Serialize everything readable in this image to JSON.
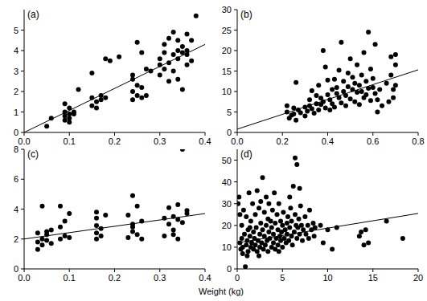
{
  "chart_data": [
    {
      "type": "scatter",
      "title": "(a)",
      "xlim": [
        0,
        0.4
      ],
      "xticks": [
        {
          "value": 0,
          "label": "0.0"
        },
        0.1,
        0.2,
        0.3,
        0.4
      ],
      "ylim": [
        0,
        6
      ],
      "yticks": [
        0,
        1,
        2,
        3,
        4,
        5
      ],
      "series": [
        {
          "type": "scatter",
          "marker": "circle",
          "color": "#000000",
          "x": [
            0.05,
            0.06,
            0.09,
            0.09,
            0.09,
            0.1,
            0.1,
            0.1,
            0.09,
            0.11,
            0.12,
            0.11,
            0.1,
            0.15,
            0.15,
            0.15,
            0.16,
            0.16,
            0.17,
            0.17,
            0.18,
            0.18,
            0.19,
            0.21,
            0.24,
            0.24,
            0.24,
            0.25,
            0.25,
            0.25,
            0.26,
            0.26,
            0.26,
            0.27,
            0.27,
            0.28,
            0.24,
            0.3,
            0.3,
            0.3,
            0.31,
            0.31,
            0.31,
            0.32,
            0.32,
            0.32,
            0.33,
            0.33,
            0.33,
            0.34,
            0.34,
            0.34,
            0.35,
            0.35,
            0.35,
            0.36,
            0.36,
            0.36,
            0.37,
            0.37,
            0.38,
            0.36,
            0.34
          ],
          "values": [
            0.3,
            0.7,
            0.8,
            1.0,
            0.6,
            0.9,
            1.2,
            0.7,
            1.4,
            0.9,
            2.1,
            1.0,
            0.5,
            1.3,
            1.7,
            2.9,
            1.5,
            1.2,
            1.8,
            1.6,
            1.7,
            3.6,
            3.5,
            3.7,
            2.0,
            2.6,
            2.8,
            1.8,
            4.4,
            2.3,
            2.2,
            3.9,
            1.7,
            1.8,
            3.1,
            3.0,
            1.6,
            3.3,
            3.6,
            2.8,
            3.1,
            3.9,
            4.3,
            2.5,
            3.4,
            4.6,
            4.9,
            3.8,
            3.0,
            3.6,
            2.6,
            4.5,
            3.9,
            4.2,
            2.1,
            3.3,
            4.8,
            4.0,
            4.5,
            3.5,
            5.7,
            3.8,
            4.0
          ]
        },
        {
          "type": "line",
          "line_style": "solid",
          "color": "#000000",
          "x": [
            0,
            0.4
          ],
          "values": [
            0,
            4.3
          ]
        }
      ]
    },
    {
      "type": "scatter",
      "title": "(b)",
      "xlim": [
        0,
        0.8
      ],
      "xticks": [
        {
          "value": 0,
          "label": "0.0"
        },
        0.2,
        0.4,
        0.6,
        0.8
      ],
      "ylim": [
        0,
        30
      ],
      "yticks": [
        0,
        5,
        10,
        15,
        20,
        25,
        30
      ],
      "series": [
        {
          "type": "scatter",
          "marker": "circle",
          "color": "#000000",
          "x": [
            0.22,
            0.22,
            0.23,
            0.24,
            0.25,
            0.25,
            0.26,
            0.26,
            0.27,
            0.28,
            0.3,
            0.3,
            0.31,
            0.32,
            0.32,
            0.33,
            0.33,
            0.34,
            0.35,
            0.35,
            0.36,
            0.36,
            0.37,
            0.37,
            0.38,
            0.38,
            0.39,
            0.39,
            0.4,
            0.4,
            0.41,
            0.41,
            0.42,
            0.42,
            0.43,
            0.43,
            0.44,
            0.44,
            0.45,
            0.45,
            0.46,
            0.46,
            0.47,
            0.47,
            0.48,
            0.48,
            0.49,
            0.49,
            0.5,
            0.5,
            0.51,
            0.51,
            0.52,
            0.52,
            0.53,
            0.53,
            0.54,
            0.54,
            0.55,
            0.55,
            0.56,
            0.56,
            0.57,
            0.57,
            0.58,
            0.58,
            0.59,
            0.59,
            0.6,
            0.6,
            0.61,
            0.61,
            0.62,
            0.62,
            0.63,
            0.64,
            0.66,
            0.67,
            0.68,
            0.68,
            0.69,
            0.69,
            0.7,
            0.7,
            0.7
          ],
          "values": [
            6.5,
            5.0,
            3.5,
            4.2,
            6.0,
            4.5,
            12.2,
            3.0,
            5.5,
            4.8,
            6.2,
            4.0,
            5.2,
            8.0,
            6.5,
            10.2,
            5.8,
            4.7,
            7.0,
            9.0,
            5.5,
            11.5,
            6.8,
            8.4,
            20.0,
            7.5,
            16.0,
            6.0,
            9.2,
            12.8,
            5.5,
            8.0,
            10.5,
            7.0,
            13.0,
            6.2,
            9.5,
            11.0,
            8.5,
            15.2,
            7.2,
            22.0,
            10.0,
            12.5,
            6.5,
            9.0,
            14.5,
            11.2,
            8.2,
            18.0,
            10.5,
            13.5,
            7.5,
            12.0,
            9.8,
            16.5,
            11.5,
            6.8,
            10.0,
            14.0,
            8.5,
            19.5,
            12.5,
            9.2,
            24.5,
            10.8,
            15.5,
            7.8,
            11.0,
            13.2,
            21.5,
            9.5,
            8.0,
            5.0,
            10.5,
            6.5,
            12.0,
            7.5,
            18.5,
            14.0,
            10.5,
            8.5,
            19.0,
            16.5,
            11.5
          ]
        },
        {
          "type": "line",
          "line_style": "solid",
          "color": "#000000",
          "x": [
            0,
            0.8
          ],
          "values": [
            0.8,
            15.3
          ]
        }
      ]
    },
    {
      "type": "scatter",
      "title": "(c)",
      "xlim": [
        0,
        0.4
      ],
      "xticks": [
        {
          "value": 0,
          "label": "0.0"
        },
        0.1,
        0.2,
        0.3,
        0.4
      ],
      "ylim": [
        0,
        8
      ],
      "yticks": [
        0,
        2,
        4,
        6,
        8
      ],
      "series": [
        {
          "type": "scatter",
          "marker": "circle",
          "color": "#000000",
          "x": [
            0.03,
            0.03,
            0.03,
            0.04,
            0.04,
            0.04,
            0.05,
            0.05,
            0.05,
            0.06,
            0.06,
            0.08,
            0.08,
            0.08,
            0.09,
            0.09,
            0.1,
            0.1,
            0.16,
            0.16,
            0.16,
            0.16,
            0.17,
            0.17,
            0.18,
            0.16,
            0.23,
            0.23,
            0.24,
            0.24,
            0.24,
            0.25,
            0.25,
            0.26,
            0.26,
            0.24,
            0.31,
            0.31,
            0.32,
            0.32,
            0.33,
            0.33,
            0.34,
            0.34,
            0.34,
            0.35,
            0.35,
            0.36,
            0.36,
            0.33
          ],
          "values": [
            1.3,
            2.4,
            1.8,
            2.0,
            4.2,
            1.6,
            2.5,
            1.9,
            2.3,
            1.7,
            2.6,
            2.0,
            4.2,
            2.8,
            2.2,
            3.2,
            2.1,
            3.7,
            2.0,
            2.4,
            3.4,
            3.8,
            2.2,
            2.7,
            3.6,
            2.9,
            2.1,
            3.6,
            2.5,
            4.9,
            2.8,
            2.3,
            4.2,
            3.2,
            2.0,
            3.0,
            2.2,
            3.4,
            3.0,
            4.1,
            2.6,
            3.5,
            2.0,
            4.3,
            3.3,
            8.0,
            3.1,
            3.7,
            3.9,
            2.3
          ]
        },
        {
          "type": "line",
          "line_style": "solid",
          "color": "#000000",
          "x": [
            0,
            0.4
          ],
          "values": [
            2.0,
            3.7
          ]
        }
      ]
    },
    {
      "type": "scatter",
      "title": "(d)",
      "xlim": [
        0,
        20
      ],
      "xticks": [
        0,
        5,
        10,
        15,
        20
      ],
      "ylim": [
        0,
        55
      ],
      "yticks": [
        0,
        10,
        20,
        30,
        40,
        50
      ],
      "series": [
        {
          "type": "scatter",
          "marker": "circle",
          "color": "#000000",
          "x": [
            0.2,
            0.3,
            0.4,
            0.5,
            0.5,
            0.6,
            0.7,
            0.8,
            0.9,
            1.0,
            1.0,
            1.1,
            1.2,
            1.2,
            1.3,
            1.4,
            1.5,
            1.5,
            1.6,
            1.7,
            1.8,
            1.8,
            1.9,
            2.0,
            2.0,
            2.1,
            2.2,
            2.2,
            2.3,
            2.4,
            2.5,
            2.5,
            2.6,
            2.7,
            2.8,
            2.8,
            2.9,
            3.0,
            3.0,
            3.1,
            3.2,
            3.2,
            3.3,
            3.4,
            3.5,
            3.5,
            3.6,
            3.7,
            3.8,
            3.8,
            3.9,
            4.0,
            4.0,
            4.1,
            4.2,
            4.2,
            4.3,
            4.4,
            4.5,
            4.5,
            4.6,
            4.7,
            4.8,
            4.8,
            4.9,
            5.0,
            5.0,
            5.1,
            5.2,
            5.3,
            5.4,
            5.5,
            5.5,
            5.6,
            5.7,
            5.8,
            5.9,
            6.0,
            6.0,
            6.1,
            6.2,
            6.3,
            6.4,
            6.4,
            6.5,
            6.6,
            6.6,
            6.7,
            6.8,
            6.9,
            7.0,
            7.1,
            7.2,
            7.3,
            7.5,
            7.6,
            7.8,
            7.9,
            8.0,
            8.2,
            8.4,
            8.5,
            8.6,
            9.2,
            9.5,
            10.0,
            10.5,
            11.0,
            13.5,
            13.7,
            14.0,
            14.2,
            14.5,
            16.5,
            18.3,
            0.1,
            0.3,
            1.4,
            2.6,
            3.4,
            4.6,
            5.8,
            6.9,
            1.1,
            0.6,
            2.4
          ],
          "values": [
            33,
            12,
            9,
            20,
            14,
            10,
            27,
            16,
            1,
            11,
            24,
            13,
            8,
            18,
            35,
            15,
            10,
            22,
            12,
            30,
            9,
            17,
            14,
            25,
            11,
            19,
            36,
            8,
            13,
            28,
            16,
            10,
            21,
            12,
            42,
            18,
            9,
            15,
            26,
            11,
            33,
            20,
            13,
            8,
            17,
            30,
            14,
            22,
            10,
            19,
            27,
            12,
            16,
            35,
            9,
            21,
            14,
            25,
            11,
            18,
            30,
            15,
            13,
            22,
            17,
            10,
            20,
            26,
            14,
            18,
            12,
            21,
            16,
            24,
            13,
            19,
            28,
            15,
            22,
            11,
            38,
            17,
            51,
            25,
            20,
            48,
            14,
            19,
            23,
            16,
            29,
            20,
            13,
            18,
            24,
            16,
            20,
            14,
            27,
            18,
            21,
            15,
            19,
            20,
            12,
            18,
            9,
            19,
            15,
            17,
            11,
            18,
            12,
            22,
            14,
            30,
            25,
            19,
            31,
            23,
            8,
            33,
            37,
            6,
            7,
            6
          ]
        },
        {
          "type": "line",
          "line_style": "solid",
          "color": "#000000",
          "x": [
            0,
            20
          ],
          "values": [
            12,
            25.5
          ]
        }
      ]
    }
  ],
  "x_label": "Weight (kg)"
}
